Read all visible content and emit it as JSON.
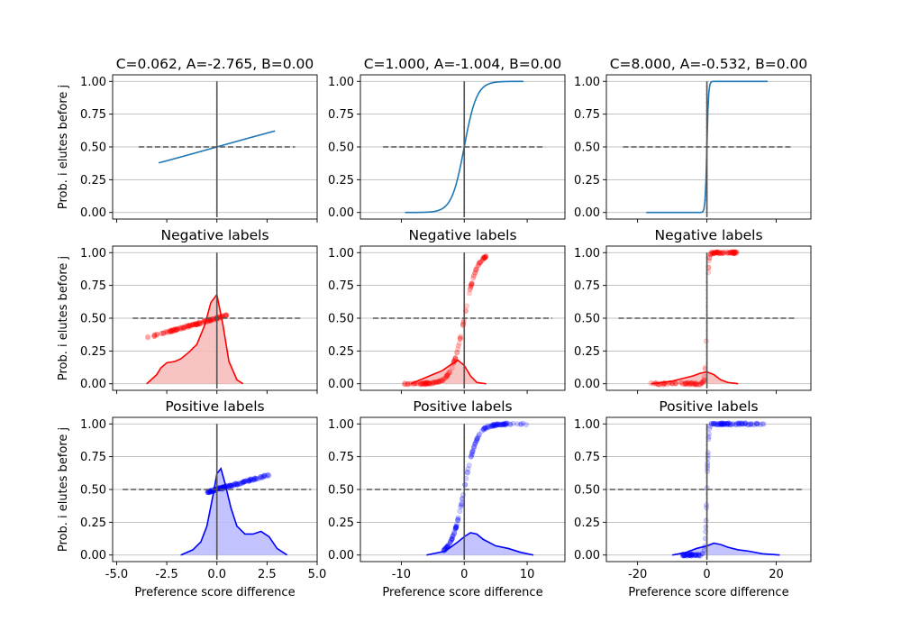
{
  "chart_data": {
    "type": "grid",
    "rows": 3,
    "cols": 3,
    "xlabel": "Preference score difference",
    "ylabel": "Prob. i elutes before j",
    "y_ticks": [
      "0.00",
      "0.25",
      "0.50",
      "0.75",
      "1.00"
    ],
    "ylim": [
      -0.05,
      1.05
    ],
    "grid": "horizontal",
    "columns": [
      {
        "title": "C=0.062, A=-2.765, B=0.00",
        "C": 0.062,
        "A": -2.765,
        "xlim": [
          -5.2,
          5.0
        ],
        "x_ticks": [
          "-5.0",
          "-2.5",
          "0.0",
          "2.5",
          "5.0"
        ],
        "x_tick_values": [
          -5,
          -2.5,
          0,
          2.5,
          5
        ]
      },
      {
        "title": "C=1.000, A=-1.004, B=0.00",
        "C": 1.0,
        "A": -1.004,
        "xlim": [
          -16.5,
          16
        ],
        "x_ticks": [
          "-10",
          "0",
          "10"
        ],
        "x_tick_values": [
          -10,
          0,
          10
        ]
      },
      {
        "title": "C=8.000, A=-0.532, B=0.00",
        "C": 8.0,
        "A": -0.532,
        "xlim": [
          -29,
          30
        ],
        "x_ticks": [
          "-20",
          "0",
          "20"
        ],
        "x_tick_values": [
          -20,
          0,
          20
        ]
      }
    ],
    "row_titles": [
      "",
      "Negative labels",
      "Positive labels"
    ],
    "panels": [
      [
        {
          "sigmoid_x": [
            -2.9,
            2.9
          ],
          "hline_x": [
            -3.9,
            3.9
          ]
        },
        {
          "sigmoid_x": [
            -9.4,
            9.4
          ],
          "hline_x": [
            -12.9,
            12.9
          ]
        },
        {
          "sigmoid_x": [
            -17.5,
            17.5
          ],
          "hline_x": [
            -24.2,
            24.2
          ]
        }
      ],
      [
        {
          "points_x": [
            -3.5,
            0.5
          ],
          "hline_x": [
            -4.2,
            4.2
          ],
          "sigmoid_x": [
            -3.5,
            1.2
          ],
          "kde_x": [
            -3.5,
            -3.0,
            -2.8,
            -2.5,
            -2.1,
            -1.8,
            -1.4,
            -1.0,
            -0.6,
            -0.3,
            0.0,
            0.3,
            0.6,
            1.0,
            1.3
          ],
          "kde_y": [
            0.0,
            0.07,
            0.12,
            0.16,
            0.17,
            0.19,
            0.24,
            0.3,
            0.45,
            0.62,
            0.68,
            0.45,
            0.17,
            0.03,
            0.0
          ]
        },
        {
          "points_x": [
            -10,
            3.5
          ],
          "hline_x": [
            -14.5,
            14.0
          ],
          "sigmoid_x": [
            -10,
            4
          ],
          "kde_x": [
            -8.5,
            -7.0,
            -6.0,
            -5.0,
            -3.5,
            -2.0,
            -1.0,
            0.0,
            1.0,
            2.0,
            3.5
          ],
          "kde_y": [
            0.0,
            0.03,
            0.05,
            0.07,
            0.1,
            0.15,
            0.18,
            0.14,
            0.06,
            0.01,
            0.0
          ]
        },
        {
          "points_x": [
            -17,
            9
          ],
          "hline_x": [
            -25.5,
            25.5
          ],
          "sigmoid_x": [
            -17,
            9
          ],
          "kde_x": [
            -16,
            -13,
            -10,
            -7,
            -4,
            -2,
            0,
            2,
            4,
            6,
            9
          ],
          "kde_y": [
            0.0,
            0.01,
            0.02,
            0.04,
            0.06,
            0.08,
            0.09,
            0.07,
            0.03,
            0.01,
            0.0
          ]
        }
      ],
      [
        {
          "points_x": [
            -0.5,
            2.8
          ],
          "hline_x": [
            -4.7,
            4.7
          ],
          "sigmoid_x": [
            -0.5,
            2.8
          ],
          "kde_x": [
            -1.8,
            -1.2,
            -0.8,
            -0.5,
            -0.2,
            0.0,
            0.2,
            0.4,
            0.7,
            1.0,
            1.4,
            1.8,
            2.2,
            2.6,
            3.0,
            3.5
          ],
          "kde_y": [
            0.0,
            0.04,
            0.1,
            0.22,
            0.45,
            0.62,
            0.66,
            0.55,
            0.36,
            0.22,
            0.16,
            0.16,
            0.18,
            0.14,
            0.05,
            0.0
          ]
        },
        {
          "points_x": [
            -3.5,
            10
          ],
          "hline_x": [
            -15.5,
            15.5
          ],
          "sigmoid_x": [
            -3.5,
            10
          ],
          "kde_x": [
            -6,
            -3,
            -1,
            0,
            1,
            2,
            3,
            5,
            7,
            9,
            11
          ],
          "kde_y": [
            0.0,
            0.03,
            0.1,
            0.14,
            0.17,
            0.16,
            0.12,
            0.07,
            0.05,
            0.02,
            0.0
          ]
        },
        {
          "points_x": [
            -7,
            17
          ],
          "hline_x": [
            -28,
            28
          ],
          "sigmoid_x": [
            -7,
            17
          ],
          "kde_x": [
            -10,
            -6,
            -3,
            0,
            2,
            4,
            6,
            9,
            12,
            16,
            21
          ],
          "kde_y": [
            0.0,
            0.02,
            0.05,
            0.07,
            0.09,
            0.08,
            0.06,
            0.04,
            0.03,
            0.01,
            0.0
          ]
        }
      ]
    ],
    "colors": {
      "sigmoid": "#1f77b4",
      "negative": "#ff0000",
      "negative_fill": "#f7b8b8",
      "positive": "#0000ff",
      "positive_fill": "#b8b8ff",
      "dashed": "#555555",
      "grid": "#b0b0b0"
    }
  }
}
